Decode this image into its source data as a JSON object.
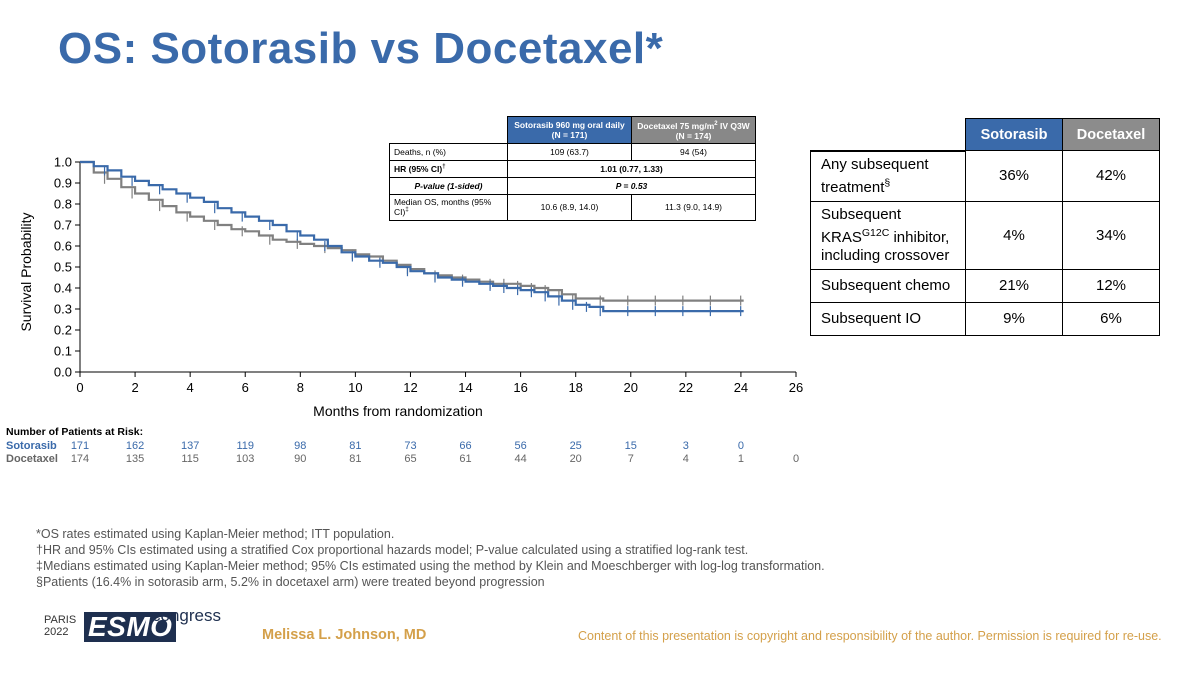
{
  "title": "OS: Sotorasib vs Docetaxel*",
  "colors": {
    "sotorasib": "#3a6aaa",
    "docetaxel": "#808080",
    "accent": "#d4a04a"
  },
  "chart_data": {
    "type": "line",
    "subtype": "kaplan-meier",
    "xlabel": "Months from randomization",
    "ylabel": "Survival Probability",
    "xlim": [
      0,
      26
    ],
    "ylim": [
      0,
      1.0
    ],
    "xticks": [
      "0",
      "2",
      "4",
      "6",
      "8",
      "10",
      "12",
      "14",
      "16",
      "18",
      "20",
      "22",
      "24",
      "26"
    ],
    "yticks": [
      "0.0",
      "0.1",
      "0.2",
      "0.3",
      "0.4",
      "0.5",
      "0.6",
      "0.7",
      "0.8",
      "0.9",
      "1.0"
    ],
    "grid": false,
    "series": [
      {
        "name": "Sotorasib",
        "color": "#3a6aaa",
        "x": [
          0,
          0.5,
          1,
          1.5,
          2,
          2.5,
          3,
          3.5,
          4,
          4.5,
          5,
          5.5,
          6,
          6.5,
          7,
          7.5,
          8,
          8.5,
          9,
          9.5,
          10,
          10.5,
          11,
          11.5,
          12,
          12.5,
          13,
          13.5,
          14,
          14.5,
          15,
          15.5,
          16,
          16.5,
          17,
          17.5,
          18,
          18.5,
          19,
          20,
          21,
          22,
          23,
          24.1
        ],
        "y": [
          1.0,
          0.98,
          0.96,
          0.93,
          0.91,
          0.89,
          0.87,
          0.85,
          0.83,
          0.81,
          0.78,
          0.76,
          0.74,
          0.72,
          0.7,
          0.67,
          0.65,
          0.63,
          0.6,
          0.57,
          0.55,
          0.53,
          0.52,
          0.5,
          0.48,
          0.47,
          0.45,
          0.44,
          0.43,
          0.42,
          0.41,
          0.4,
          0.39,
          0.38,
          0.36,
          0.34,
          0.32,
          0.31,
          0.29,
          0.29,
          0.29,
          0.29,
          0.29,
          0.29
        ]
      },
      {
        "name": "Docetaxel",
        "color": "#808080",
        "x": [
          0,
          0.5,
          1,
          1.5,
          2,
          2.5,
          3,
          3.5,
          4,
          4.5,
          5,
          5.5,
          6,
          6.5,
          7,
          7.5,
          8,
          8.5,
          9,
          9.5,
          10,
          10.5,
          11,
          11.5,
          12,
          12.5,
          13,
          13.5,
          14,
          14.5,
          15,
          15.5,
          16,
          16.5,
          17,
          17.5,
          18,
          19,
          20,
          21,
          22,
          23,
          24.1
        ],
        "y": [
          1.0,
          0.95,
          0.92,
          0.88,
          0.85,
          0.82,
          0.79,
          0.76,
          0.74,
          0.72,
          0.7,
          0.68,
          0.67,
          0.65,
          0.63,
          0.62,
          0.61,
          0.6,
          0.59,
          0.58,
          0.56,
          0.55,
          0.53,
          0.51,
          0.49,
          0.47,
          0.46,
          0.45,
          0.44,
          0.43,
          0.42,
          0.42,
          0.41,
          0.4,
          0.39,
          0.37,
          0.35,
          0.34,
          0.34,
          0.34,
          0.34,
          0.34,
          0.34
        ]
      }
    ]
  },
  "hr_table": {
    "col_sotorasib": "Sotorasib 960 mg oral daily (N = 171)",
    "col_docetaxel_a": "Docetaxel 75 mg/m",
    "col_docetaxel_sup": "2",
    "col_docetaxel_b": " IV Q3W (N = 174)",
    "deaths_label": "Deaths, n (%)",
    "deaths_sot": "109 (63.7)",
    "deaths_doc": "94 (54)",
    "hr_label": "HR (95% CI)",
    "hr_sup": "†",
    "hr_value": "1.01 (0.77, 1.33)",
    "p_label": "P-value (1-sided)",
    "p_value": "P = 0.53",
    "median_label": "Median OS, months (95% CI)",
    "median_sup": "‡",
    "median_sot": "10.6 (8.9, 14.0)",
    "median_doc": "11.3 (9.0, 14.9)"
  },
  "sub_table": {
    "col_sotorasib": "Sotorasib",
    "col_docetaxel": "Docetaxel",
    "rows": [
      {
        "label": "Any subsequent treatment",
        "sup": "§",
        "sot": "36%",
        "doc": "42%"
      },
      {
        "label_a": "Subsequent KRAS",
        "sup": "G12C",
        "label_b": " inhibitor, including crossover",
        "sot": "4%",
        "doc": "34%"
      },
      {
        "label": "Subsequent chemo",
        "sot": "21%",
        "doc": "12%"
      },
      {
        "label": "Subsequent IO",
        "sot": "9%",
        "doc": "6%"
      }
    ]
  },
  "risk": {
    "title": "Number of Patients at Risk:",
    "sot_label": "Sotorasib",
    "doc_label": "Docetaxel",
    "sot_values": [
      "171",
      "162",
      "137",
      "119",
      "98",
      "81",
      "73",
      "66",
      "56",
      "25",
      "15",
      "3",
      "0"
    ],
    "doc_values": [
      "174",
      "135",
      "115",
      "103",
      "90",
      "81",
      "65",
      "61",
      "44",
      "20",
      "7",
      "4",
      "1",
      "0"
    ]
  },
  "footnotes": [
    "*OS rates estimated using Kaplan-Meier method; ITT population.",
    "†HR and 95% CIs estimated using a stratified Cox proportional hazards model; P-value calculated using a stratified log-rank test.",
    "‡Medians estimated using Kaplan-Meier method; 95% CIs estimated using the method by Klein and Moeschberger with log-log transformation.",
    "§Patients (16.4% in sotorasib arm, 5.2% in docetaxel arm) were treated beyond progression"
  ],
  "logo": {
    "city": "PARIS",
    "year": "2022",
    "brand": "ESMO",
    "suffix": "congress"
  },
  "author": "Melissa L. Johnson, MD",
  "copyright": "Content of this presentation is copyright and responsibility of the author. Permission is required for re-use."
}
